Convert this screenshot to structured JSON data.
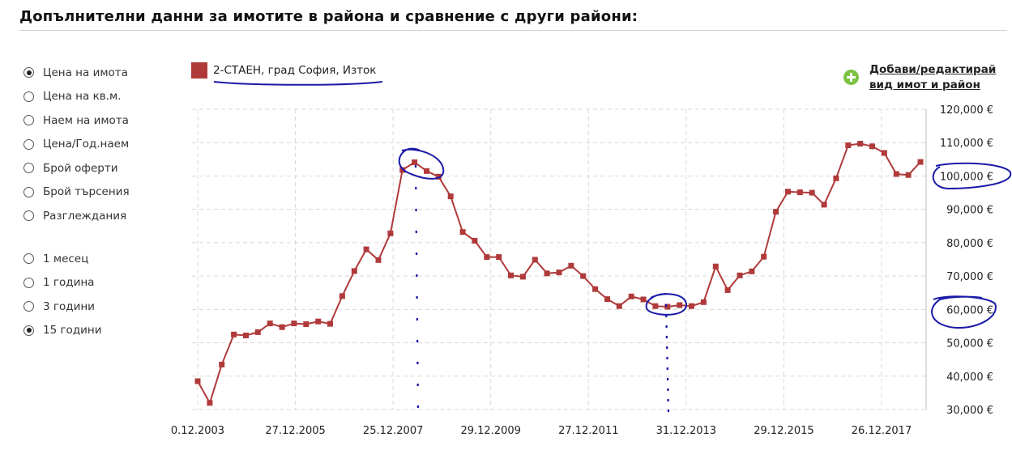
{
  "header": {
    "title": "Допълнителни данни за имотите в района и сравнение с други райони:"
  },
  "metric_options": [
    {
      "label": "Цена на имота",
      "checked": true
    },
    {
      "label": "Цена на кв.м.",
      "checked": false
    },
    {
      "label": "Наем на имота",
      "checked": false
    },
    {
      "label": "Цена/Год.наем",
      "checked": false
    },
    {
      "label": "Брой оферти",
      "checked": false
    },
    {
      "label": "Брой търсения",
      "checked": false
    },
    {
      "label": "Разглеждания",
      "checked": false
    }
  ],
  "period_options": [
    {
      "label": "1 месец",
      "checked": false
    },
    {
      "label": "1 година",
      "checked": false
    },
    {
      "label": "3 години",
      "checked": false
    },
    {
      "label": "15 години",
      "checked": true
    }
  ],
  "add_link": {
    "line1": "Добави/редактирай",
    "line2": "вид имот и район",
    "icon": "plus-circle-icon",
    "icon_color": "#7cc242"
  },
  "colors": {
    "series": "#b03a3a",
    "annotation": "#1a1aa8",
    "grid": "#d8d8d8"
  },
  "chart_data": {
    "type": "line",
    "title": "",
    "xlabel": "",
    "ylabel": "",
    "ylim": [
      30000,
      120000
    ],
    "grid": true,
    "y_ticks": [
      30000,
      40000,
      50000,
      60000,
      70000,
      80000,
      90000,
      100000,
      110000,
      120000
    ],
    "y_tick_labels": [
      "30,000 €",
      "40,000 €",
      "50,000 €",
      "60,000 €",
      "70,000 €",
      "80,000 €",
      "90,000 €",
      "100,000 €",
      "110,000 €",
      "120,000 €"
    ],
    "x_tick_labels": [
      "0.12.2003",
      "27.12.2005",
      "25.12.2007",
      "29.12.2009",
      "27.12.2011",
      "31.12.2013",
      "29.12.2015",
      "26.12.2017"
    ],
    "series": [
      {
        "name": "2-СТАЕН, град София, Изток",
        "color": "#b03a3a",
        "values": [
          38500,
          32000,
          43500,
          52500,
          52200,
          53200,
          55800,
          54700,
          55800,
          55600,
          56400,
          55700,
          64000,
          71500,
          78000,
          74800,
          82800,
          101800,
          104100,
          101500,
          99800,
          93900,
          83200,
          80600,
          75700,
          75700,
          70200,
          69800,
          74900,
          70800,
          71100,
          73100,
          70000,
          66100,
          63100,
          61000,
          63900,
          63000,
          61000,
          60800,
          61300,
          61000,
          62200,
          72900,
          65800,
          70200,
          71400,
          75800,
          89300,
          95300,
          95100,
          95000,
          91400,
          99300,
          109200,
          109700,
          108900,
          106900,
          100600,
          100300,
          104200
        ]
      }
    ]
  }
}
